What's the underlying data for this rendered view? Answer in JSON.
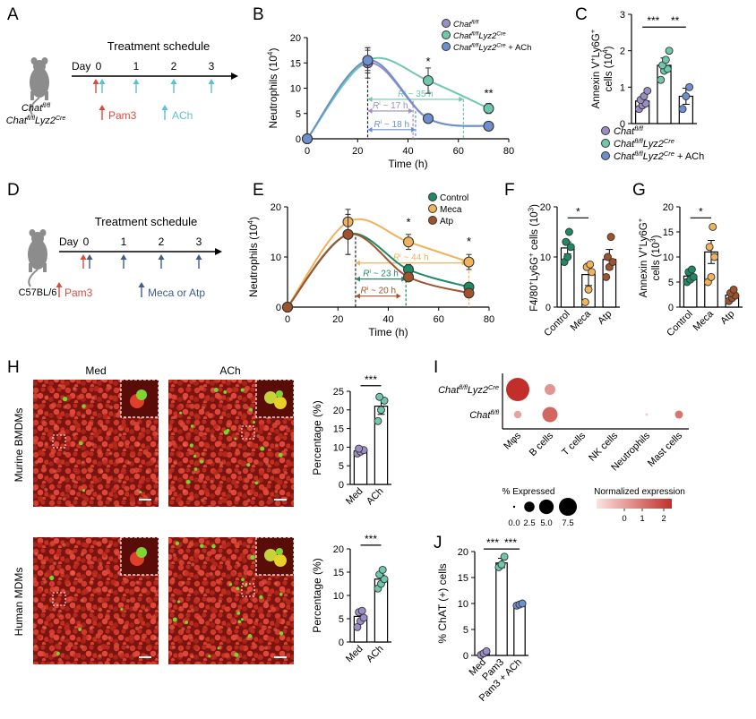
{
  "panel_letters": [
    "A",
    "B",
    "C",
    "D",
    "E",
    "F",
    "G",
    "H",
    "I",
    "J"
  ],
  "colors": {
    "purple": "#9b8ec4",
    "teal": "#6fc7ae",
    "blue": "#6d8fcf",
    "green": "#1e8a64",
    "orange": "#f0b25a",
    "brown": "#a0522d",
    "red": "#d94b3f",
    "cyan": "#5bbfd6",
    "navy": "#3e5c8f",
    "fluor_red": "#c0281f",
    "fluor_green": "#6fdc2a"
  },
  "panelA": {
    "mouse_line1": "Chat",
    "mouse_line1_sup": "fl/fl",
    "mouse_line2": "Chat",
    "mouse_line2_sup": "fl/fl",
    "mouse_line2_gene": "Lyz2",
    "mouse_line2_gene_sup": "Cre",
    "schedule_title": "Treatment schedule",
    "day_label": "Day",
    "days": [
      "0",
      "1",
      "2",
      "3"
    ],
    "legend_pam3": "Pam3",
    "legend_ach": "ACh"
  },
  "panelD": {
    "mouse": "C57BL/6",
    "schedule_title": "Treatment schedule",
    "day_label": "Day",
    "days": [
      "0",
      "1",
      "2",
      "3"
    ],
    "legend_pam3": "Pam3",
    "legend_meca": "Meca or Atp"
  },
  "panelB": {
    "ylabel": "Neutrophils (10",
    "ylabel_sup": "4",
    "ylabel_end": ")",
    "xlabel": "Time (h)",
    "legend": [
      "Chat",
      "Chat",
      "Chat"
    ],
    "legend_sups": [
      "fl/fl",
      "fl/fl",
      "fl/fl"
    ],
    "legend_gene": [
      "",
      "Lyz2",
      "Lyz2"
    ],
    "legend_gene_sup": [
      "",
      "Cre",
      "Cre"
    ],
    "legend_suffix": [
      "",
      "",
      " + ACh"
    ],
    "ri_labels": [
      "R",
      "R",
      "R"
    ],
    "ri_values": [
      " ~ 35 h",
      " ~ 17 h",
      " ~ 18 h"
    ],
    "stars": [
      "*",
      "**"
    ]
  },
  "panelE": {
    "ylabel": "Neutrophils (10",
    "ylabel_sup": "4",
    "ylabel_end": ")",
    "xlabel": "Time (h)",
    "legend": [
      "Control",
      "Meca",
      "Atp"
    ],
    "ri_labels": [
      "R",
      "R",
      "R"
    ],
    "ri_values": [
      " ~ 44 h",
      " ~ 23 h",
      " ~ 20 h"
    ],
    "stars": [
      "*",
      "*"
    ]
  },
  "panelC": {
    "ylabel1": "Annexin V",
    "ylabel2": "cells (10",
    "legend": [
      "Chat",
      "Chat",
      "Chat"
    ],
    "legend_sups": [
      "fl/fl",
      "fl/fl",
      "fl/fl"
    ],
    "legend_gene": [
      "",
      "Lyz2",
      "Lyz2"
    ],
    "legend_gene_sup": [
      "",
      "Cre",
      "Cre"
    ],
    "legend_suffix": [
      "",
      "",
      " + ACh"
    ],
    "stars": [
      "***",
      "**"
    ]
  },
  "panelF": {
    "ylabel": "F4/80",
    "categories": [
      "Control",
      "Meca",
      "Atp"
    ],
    "stars": [
      "*"
    ]
  },
  "panelG": {
    "ylabel1": "Annexin V",
    "ylabel2": "cells (10",
    "categories": [
      "Control",
      "Meca",
      "Atp"
    ],
    "stars": [
      "*"
    ]
  },
  "panelH": {
    "col_labels": [
      "Med",
      "ACh"
    ],
    "row_labels": [
      "Murine BMDMs",
      "Human MDMs"
    ],
    "ylabel": "Percentage (%)",
    "categories": [
      "Med",
      "ACh"
    ],
    "stars": [
      "***",
      "***"
    ]
  },
  "panelI": {
    "rows": [
      "Chat",
      "Chat"
    ],
    "row_sups": [
      "fl/fl",
      "fl/fl"
    ],
    "row_gene": [
      "Lyz2",
      ""
    ],
    "row_gene_sup": [
      "Cre",
      ""
    ],
    "columns": [
      "Mφs",
      "B cells",
      "T cells",
      "NK cells",
      "Neutrophils",
      "Mast cells"
    ],
    "size_legend_title": "% Expressed",
    "size_legend_values": [
      "0.0",
      "2.5",
      "5.0",
      "7.5"
    ],
    "color_legend_title": "Normalized expression",
    "color_legend_values": [
      "0",
      "1",
      "2"
    ]
  },
  "panelJ": {
    "ylabel": "% ChAT (+) cells",
    "categories": [
      "Med",
      "Pam3",
      "Pam3 + ACh"
    ],
    "stars": [
      "***",
      "***"
    ]
  },
  "chart_data": [
    {
      "id": "B",
      "type": "scatter",
      "xlabel": "Time (h)",
      "ylabel": "Neutrophils (10^4)",
      "xlim": [
        0,
        80
      ],
      "ylim": [
        0,
        20
      ],
      "xticks": [
        0,
        20,
        40,
        60,
        80
      ],
      "yticks": [
        0,
        5,
        10,
        15,
        20
      ],
      "x": [
        0,
        24,
        48,
        72
      ],
      "series": [
        {
          "name": "Chat fl/fl",
          "color": "#9b8ec4",
          "values": [
            0,
            15,
            4,
            2.5
          ],
          "errors": [
            0,
            3,
            0.5,
            0.5
          ]
        },
        {
          "name": "Chat fl/fl Lyz2 Cre",
          "color": "#6fc7ae",
          "values": [
            0,
            15.5,
            11.5,
            6
          ],
          "errors": [
            0,
            2,
            2.5,
            1
          ]
        },
        {
          "name": "Chat fl/fl Lyz2 Cre + ACh",
          "color": "#6d8fcf",
          "values": [
            0,
            15.5,
            4,
            2.5
          ],
          "errors": [
            0,
            2.5,
            0.5,
            0.5
          ]
        }
      ]
    },
    {
      "id": "E",
      "type": "scatter",
      "xlabel": "Time (h)",
      "ylabel": "Neutrophils (10^4)",
      "xlim": [
        0,
        80
      ],
      "ylim": [
        0,
        20
      ],
      "xticks": [
        0,
        20,
        40,
        60,
        80
      ],
      "yticks": [
        0,
        10,
        20
      ],
      "x": [
        0,
        24,
        48,
        72
      ],
      "series": [
        {
          "name": "Control",
          "color": "#1e8a64",
          "values": [
            0,
            14.5,
            7.5,
            4
          ],
          "errors": [
            0,
            4,
            1,
            0.5
          ]
        },
        {
          "name": "Meca",
          "color": "#f0b25a",
          "values": [
            0,
            17,
            13,
            9
          ],
          "errors": [
            0,
            2.5,
            1.5,
            1.5
          ]
        },
        {
          "name": "Atp",
          "color": "#a0522d",
          "values": [
            0,
            14.5,
            6,
            2.8
          ],
          "errors": [
            0,
            4,
            0.8,
            0.5
          ]
        }
      ]
    },
    {
      "id": "C",
      "type": "bar",
      "ylim": [
        0,
        3
      ],
      "yticks": [
        0,
        1,
        2,
        3
      ],
      "categories": [
        "Chat fl/fl",
        "Chat fl/fl Lyz2 Cre",
        "Chat fl/fl Lyz2 Cre + ACh"
      ],
      "values": [
        0.62,
        1.6,
        0.75
      ],
      "errors": [
        0.12,
        0.2,
        0.22
      ],
      "points": [
        [
          0.4,
          0.5,
          0.55,
          0.65,
          0.75,
          0.9
        ],
        [
          1.2,
          1.45,
          1.5,
          1.6,
          1.75,
          2.0
        ],
        [
          0.4,
          0.75,
          1.0
        ]
      ],
      "colors": [
        "#9b8ec4",
        "#6fc7ae",
        "#6d8fcf"
      ]
    },
    {
      "id": "F",
      "type": "bar",
      "ylim": [
        0,
        20
      ],
      "yticks": [
        0,
        10,
        20
      ],
      "categories": [
        "Control",
        "Meca",
        "Atp"
      ],
      "values": [
        11.8,
        6.5,
        9.5
      ],
      "errors": [
        1.2,
        2.2,
        2
      ],
      "points": [
        [
          9,
          10,
          12,
          13,
          15
        ],
        [
          1,
          3.5,
          7,
          8,
          8.5
        ],
        [
          6,
          8,
          9,
          10,
          14
        ]
      ],
      "colors": [
        "#1e8a64",
        "#f0b25a",
        "#a0522d"
      ]
    },
    {
      "id": "G",
      "type": "bar",
      "ylim": [
        0,
        20
      ],
      "yticks": [
        0,
        5,
        10,
        15,
        20
      ],
      "categories": [
        "Control",
        "Meca",
        "Atp"
      ],
      "values": [
        6.2,
        11,
        2.4
      ],
      "errors": [
        0.7,
        2.3,
        0.6
      ],
      "points": [
        [
          5,
          5.5,
          6,
          7,
          7.5
        ],
        [
          5,
          6,
          10,
          12,
          16
        ],
        [
          1.2,
          1.8,
          2.3,
          2.8,
          3.5
        ]
      ],
      "colors": [
        "#1e8a64",
        "#f0b25a",
        "#a0522d"
      ]
    },
    {
      "id": "H-murine",
      "type": "bar",
      "ylim": [
        0,
        25
      ],
      "yticks": [
        0,
        5,
        10,
        15,
        20,
        25
      ],
      "categories": [
        "Med",
        "ACh"
      ],
      "values": [
        9,
        21
      ],
      "errors": [
        0.7,
        2.2
      ],
      "points": [
        [
          8.3,
          8.8,
          9.2,
          9.6
        ],
        [
          17,
          20,
          22.5,
          23.5
        ]
      ],
      "colors": [
        "#9b8ec4",
        "#6fc7ae"
      ]
    },
    {
      "id": "H-human",
      "type": "bar",
      "ylim": [
        0,
        20
      ],
      "yticks": [
        0,
        5,
        10,
        15,
        20
      ],
      "categories": [
        "Med",
        "ACh"
      ],
      "values": [
        5.5,
        13.5
      ],
      "errors": [
        0.7,
        0.9
      ],
      "points": [
        [
          3.2,
          4.5,
          5.2,
          6.4,
          6.7
        ],
        [
          11.5,
          12.5,
          13.5,
          14.5,
          15.5
        ]
      ],
      "colors": [
        "#9b8ec4",
        "#6fc7ae"
      ]
    },
    {
      "id": "I",
      "type": "scatter",
      "rows": [
        "Chat fl/fl Lyz2 Cre",
        "Chat fl/fl"
      ],
      "columns": [
        "Mφs",
        "B cells",
        "T cells",
        "NK cells",
        "Neutrophils",
        "Mast cells"
      ],
      "pct_expressed": [
        [
          7.5,
          1.6,
          0,
          0,
          0,
          0
        ],
        [
          0.8,
          3.2,
          0,
          0,
          0.1,
          0.9
        ]
      ],
      "norm_expression": [
        [
          2.3,
          1.0,
          0,
          0,
          0,
          0
        ],
        [
          0.8,
          1.6,
          0,
          0,
          0.3,
          1.4
        ]
      ]
    },
    {
      "id": "J",
      "type": "bar",
      "ylim": [
        0,
        20
      ],
      "yticks": [
        0,
        5,
        10,
        15,
        20
      ],
      "categories": [
        "Med",
        "Pam3",
        "Pam3 + ACh"
      ],
      "values": [
        0.4,
        17.8,
        9.8
      ],
      "errors": [
        0.3,
        0.9,
        0.3
      ],
      "points": [
        [
          0.1,
          0.4,
          0.8
        ],
        [
          17.0,
          17.5,
          19.0
        ],
        [
          9.6,
          9.8,
          10.0
        ]
      ],
      "colors": [
        "#9b8ec4",
        "#6fc7ae",
        "#6d8fcf"
      ]
    }
  ]
}
